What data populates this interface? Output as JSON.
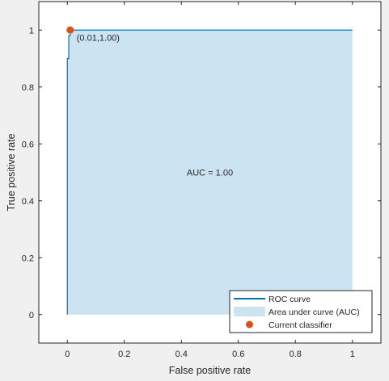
{
  "chart_data": {
    "type": "area",
    "xlabel": "False positive rate",
    "ylabel": "True positive rate",
    "xlim": [
      -0.1,
      1.1
    ],
    "ylim": [
      -0.1,
      1.1
    ],
    "xticks": [
      0,
      0.2,
      0.4,
      0.6,
      0.8,
      1
    ],
    "xtick_labels": [
      "0",
      "0.2",
      "0.4",
      "0.6",
      "0.8",
      "1"
    ],
    "yticks": [
      0,
      0.2,
      0.4,
      0.6,
      0.8,
      1
    ],
    "ytick_labels": [
      "0",
      "0.2",
      "0.4",
      "0.6",
      "0.8",
      "1"
    ],
    "grid": false,
    "series": [
      {
        "name": "ROC curve",
        "type": "line",
        "color": "#0072bd",
        "x": [
          0,
          0,
          0.005,
          0.005,
          0.01,
          0.01,
          1
        ],
        "y": [
          0,
          0.9,
          0.9,
          0.98,
          0.98,
          1.0,
          1.0
        ]
      },
      {
        "name": "Area under curve (AUC)",
        "type": "area",
        "color": "#cce3f2"
      },
      {
        "name": "Current classifier",
        "type": "scatter",
        "color": "#d95319",
        "x": [
          0.01
        ],
        "y": [
          1.0
        ]
      }
    ],
    "annotations": [
      {
        "text": "(0.01,1.00)",
        "x": 0.01,
        "y": 1.0
      },
      {
        "text": "AUC = 1.00",
        "x": 0.5,
        "y": 0.5
      }
    ],
    "legend": {
      "position": "bottom-right",
      "entries": [
        "ROC curve",
        "Area under curve (AUC)",
        "Current classifier"
      ]
    }
  }
}
